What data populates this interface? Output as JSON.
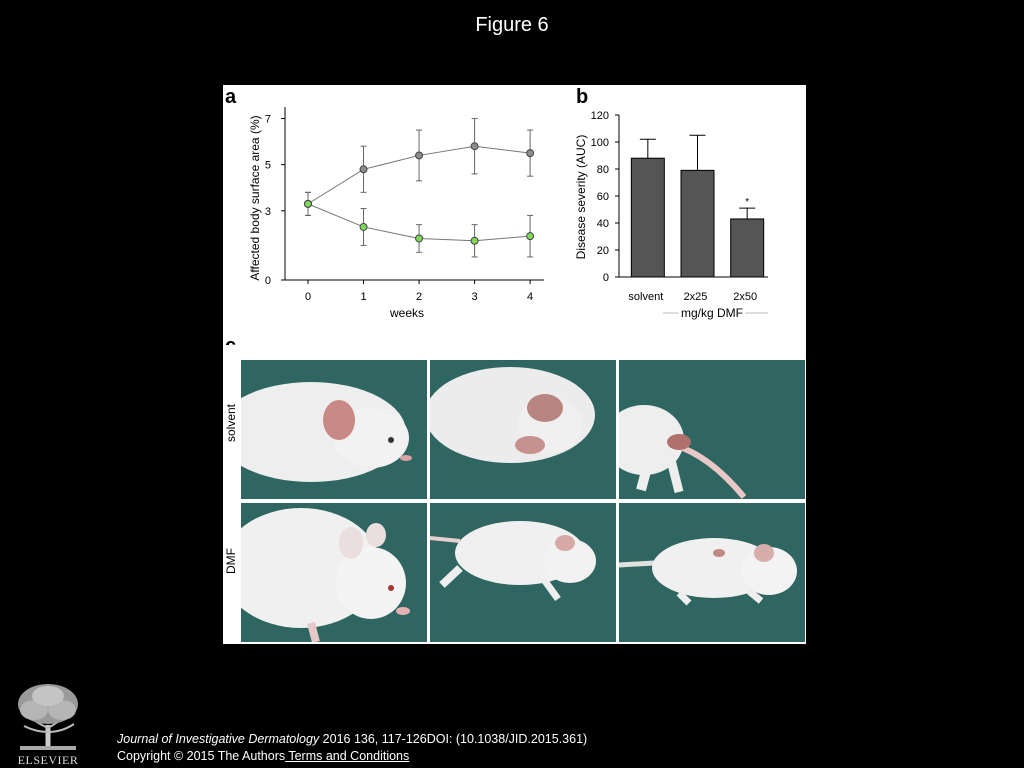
{
  "slide_title": "Figure 6",
  "panel_a": {
    "label": "a",
    "chart_data": {
      "type": "line",
      "xlabel": "weeks",
      "ylabel": "Affected body surface area (%)",
      "x_ticks": [
        "0",
        "1",
        "2",
        "3",
        "4"
      ],
      "y_ticks": [
        "0",
        "3",
        "5",
        "7"
      ],
      "ylim": [
        0,
        7.5
      ],
      "series": [
        {
          "color": "#8c8c8c",
          "values": [
            3.3,
            4.8,
            5.4,
            5.8,
            5.5
          ],
          "errors": [
            0.5,
            1.0,
            1.1,
            1.2,
            1.0
          ]
        },
        {
          "color": "#7ed957",
          "values": [
            3.3,
            2.3,
            1.8,
            1.7,
            1.9
          ],
          "errors": [
            0.5,
            0.8,
            0.6,
            0.7,
            0.9
          ]
        }
      ]
    }
  },
  "panel_b": {
    "label": "b",
    "chart_data": {
      "type": "bar",
      "ylabel": "Disease severity (AUC)",
      "xlabel": "mg/kg DMF",
      "categories": [
        "solvent",
        "2x25",
        "2x50"
      ],
      "values": [
        88,
        79,
        43
      ],
      "errors": [
        14,
        26,
        8
      ],
      "significance": [
        "",
        "",
        "*"
      ],
      "y_ticks": [
        "0",
        "20",
        "40",
        "60",
        "80",
        "100",
        "120"
      ],
      "ylim": [
        0,
        120
      ],
      "bar_color": "#555555"
    }
  },
  "panel_c": {
    "label": "c",
    "row_labels": [
      "solvent",
      "DMF"
    ],
    "background_color": "#2f6661"
  },
  "footer": {
    "journal": "Journal of Investigative Dermatology",
    "citation": " 2016 136, 117-126DOI: (10.1038/JID.2015.361)",
    "copyright": "Copyright © 2015 The Authors",
    "link": " Terms and Conditions"
  },
  "logo": {
    "text": "ELSEVIER"
  }
}
